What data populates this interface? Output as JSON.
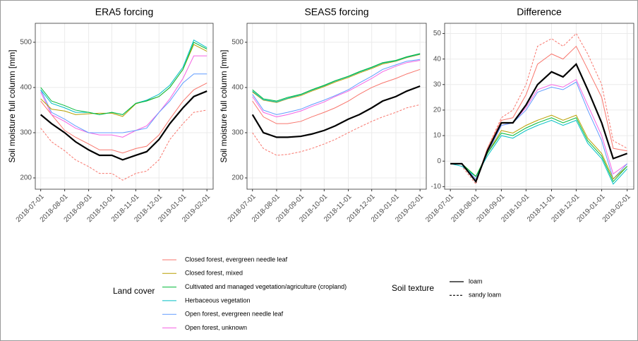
{
  "chart_data": [
    {
      "type": "line",
      "title": "ERA5 forcing",
      "y_label": "Soil moisture full column [mm]",
      "x": [
        "2018-07-01",
        "2018-07-15",
        "2018-08-01",
        "2018-08-15",
        "2018-09-01",
        "2018-09-15",
        "2018-10-01",
        "2018-10-15",
        "2018-11-01",
        "2018-11-15",
        "2018-12-01",
        "2018-12-15",
        "2019-01-01",
        "2019-01-15",
        "2019-02-01"
      ],
      "xlim": [
        "2018-06-24",
        "2019-02-09"
      ],
      "xticks": [
        "2018-07-01",
        "2018-08-01",
        "2018-09-01",
        "2018-10-01",
        "2018-11-01",
        "2018-12-01",
        "2019-01-01",
        "2019-02-01"
      ],
      "ylim": [
        175,
        542
      ],
      "yticks": [
        200,
        300,
        400,
        500
      ],
      "grid": true,
      "series": [
        {
          "color": "#f8766d",
          "dash": "dashed",
          "width": 1,
          "values": [
            310,
            280,
            260,
            240,
            225,
            210,
            210,
            195,
            210,
            215,
            240,
            285,
            320,
            345,
            350
          ]
        },
        {
          "color": "#f8766d",
          "dash": "solid",
          "width": 1,
          "values": [
            370,
            340,
            305,
            290,
            275,
            262,
            262,
            255,
            265,
            270,
            295,
            330,
            370,
            395,
            410
          ]
        },
        {
          "color": "#f564e3",
          "dash": "solid",
          "width": 1,
          "values": [
            390,
            340,
            325,
            310,
            300,
            295,
            295,
            290,
            305,
            315,
            345,
            375,
            420,
            470,
            470
          ]
        },
        {
          "color": "#619cff",
          "dash": "solid",
          "width": 1,
          "values": [
            395,
            345,
            330,
            315,
            300,
            300,
            300,
            300,
            305,
            310,
            345,
            370,
            410,
            430,
            430
          ]
        },
        {
          "color": "#b79f00",
          "dash": "solid",
          "width": 1,
          "values": [
            375,
            352,
            348,
            340,
            342,
            343,
            343,
            336,
            364,
            371,
            380,
            400,
            440,
            495,
            480
          ]
        },
        {
          "color": "#00bfc4",
          "dash": "solid",
          "width": 1,
          "values": [
            395,
            365,
            355,
            345,
            345,
            340,
            345,
            340,
            365,
            372,
            385,
            405,
            445,
            505,
            488
          ]
        },
        {
          "color": "#00ba38",
          "dash": "solid",
          "width": 1,
          "values": [
            400,
            370,
            360,
            350,
            345,
            340,
            345,
            340,
            365,
            370,
            380,
            400,
            440,
            500,
            485
          ]
        },
        {
          "color": "#000000",
          "dash": "solid",
          "width": 2.2,
          "values": [
            340,
            320,
            300,
            280,
            262,
            250,
            250,
            240,
            250,
            258,
            285,
            320,
            355,
            380,
            392
          ]
        }
      ]
    },
    {
      "type": "line",
      "title": "SEAS5 forcing",
      "y_label": "Soil moisture full column [mm]",
      "x": [
        "2018-07-01",
        "2018-07-15",
        "2018-08-01",
        "2018-08-15",
        "2018-09-01",
        "2018-09-15",
        "2018-10-01",
        "2018-10-15",
        "2018-11-01",
        "2018-11-15",
        "2018-12-01",
        "2018-12-15",
        "2019-01-01",
        "2019-01-15",
        "2019-02-01"
      ],
      "xlim": [
        "2018-06-24",
        "2019-02-09"
      ],
      "xticks": [
        "2018-07-01",
        "2018-08-01",
        "2018-09-01",
        "2018-10-01",
        "2018-11-01",
        "2018-12-01",
        "2019-01-01",
        "2019-02-01"
      ],
      "ylim": [
        175,
        542
      ],
      "yticks": [
        200,
        300,
        400,
        500
      ],
      "grid": true,
      "series": [
        {
          "color": "#f8766d",
          "dash": "dashed",
          "width": 1,
          "values": [
            300,
            265,
            250,
            252,
            258,
            265,
            275,
            285,
            300,
            312,
            325,
            335,
            345,
            355,
            362
          ]
        },
        {
          "color": "#f8766d",
          "dash": "solid",
          "width": 1,
          "values": [
            370,
            335,
            320,
            320,
            325,
            335,
            345,
            355,
            370,
            385,
            400,
            410,
            420,
            430,
            440
          ]
        },
        {
          "color": "#f564e3",
          "dash": "solid",
          "width": 1,
          "values": [
            380,
            345,
            335,
            340,
            348,
            358,
            368,
            380,
            392,
            405,
            420,
            435,
            447,
            455,
            460
          ]
        },
        {
          "color": "#619cff",
          "dash": "solid",
          "width": 1,
          "values": [
            385,
            350,
            340,
            345,
            352,
            362,
            372,
            382,
            395,
            410,
            425,
            440,
            450,
            458,
            462
          ]
        },
        {
          "color": "#b79f00",
          "dash": "solid",
          "width": 1,
          "values": [
            390,
            372,
            367,
            375,
            382,
            392,
            402,
            412,
            422,
            432,
            442,
            452,
            458,
            466,
            473
          ]
        },
        {
          "color": "#00bfc4",
          "dash": "solid",
          "width": 1,
          "values": [
            392,
            373,
            368,
            376,
            384,
            394,
            404,
            414,
            424,
            434,
            444,
            454,
            459,
            467,
            474
          ]
        },
        {
          "color": "#00ba38",
          "dash": "solid",
          "width": 1,
          "values": [
            395,
            375,
            370,
            378,
            385,
            395,
            405,
            415,
            425,
            435,
            445,
            455,
            460,
            468,
            475
          ]
        },
        {
          "color": "#000000",
          "dash": "solid",
          "width": 2.2,
          "values": [
            340,
            300,
            290,
            290,
            292,
            297,
            305,
            315,
            330,
            340,
            355,
            370,
            380,
            392,
            403
          ]
        }
      ]
    },
    {
      "type": "line",
      "title": "Difference",
      "x": [
        "2018-07-01",
        "2018-07-15",
        "2018-08-01",
        "2018-08-15",
        "2018-09-01",
        "2018-09-15",
        "2018-10-01",
        "2018-10-15",
        "2018-11-01",
        "2018-11-15",
        "2018-12-01",
        "2018-12-15",
        "2019-01-01",
        "2019-01-15",
        "2019-02-01"
      ],
      "xlim": [
        "2018-06-24",
        "2019-02-09"
      ],
      "xticks": [
        "2018-07-01",
        "2018-08-01",
        "2018-09-01",
        "2018-10-01",
        "2018-11-01",
        "2018-12-01",
        "2019-01-01",
        "2019-02-01"
      ],
      "ylim": [
        -11,
        54
      ],
      "yticks": [
        -10,
        0,
        10,
        20,
        30,
        40,
        50
      ],
      "grid": true,
      "series": [
        {
          "color": "#f8766d",
          "dash": "dashed",
          "width": 1,
          "values": [
            -1,
            -2,
            -9,
            5,
            17,
            20,
            30,
            45,
            48,
            45,
            50,
            42,
            30,
            8,
            5
          ]
        },
        {
          "color": "#f8766d",
          "dash": "solid",
          "width": 1,
          "values": [
            -1,
            -1,
            -8,
            5,
            16,
            17,
            26,
            38,
            42,
            40,
            45,
            36,
            25,
            5,
            4
          ]
        },
        {
          "color": "#f564e3",
          "dash": "solid",
          "width": 1,
          "values": [
            -1,
            -1,
            -7,
            3,
            14,
            15,
            21,
            28,
            30,
            29,
            32,
            22,
            10,
            -5,
            -1
          ]
        },
        {
          "color": "#619cff",
          "dash": "solid",
          "width": 1,
          "values": [
            -1,
            -1,
            -7,
            3,
            14,
            15,
            20,
            27,
            29,
            28,
            31,
            20,
            8,
            -7,
            -1
          ]
        },
        {
          "color": "#b79f00",
          "dash": "solid",
          "width": 1,
          "values": [
            -1,
            -1,
            -6,
            3,
            12,
            11,
            14,
            16,
            18,
            16,
            18,
            9,
            3,
            -7,
            -2
          ]
        },
        {
          "color": "#00bfc4",
          "dash": "solid",
          "width": 1,
          "values": [
            -1,
            -2,
            -6,
            2,
            10,
            9,
            12,
            14,
            16,
            14,
            16,
            7,
            1,
            -9,
            -3
          ]
        },
        {
          "color": "#00ba38",
          "dash": "solid",
          "width": 1,
          "values": [
            -1,
            -1,
            -6,
            3,
            11,
            10,
            13,
            15,
            17,
            15,
            17,
            8,
            2,
            -8,
            -2
          ]
        },
        {
          "color": "#000000",
          "dash": "solid",
          "width": 2.2,
          "values": [
            -1,
            -1,
            -8,
            4,
            15,
            15,
            22,
            30,
            35,
            33,
            38,
            28,
            15,
            1,
            3
          ]
        }
      ]
    }
  ],
  "legend": {
    "land_cover": {
      "title": "Land cover",
      "entries": [
        {
          "name": "Closed forest, evergreen needle leaf",
          "color": "#f8766d"
        },
        {
          "name": "Closed forest, mixed",
          "color": "#b79f00"
        },
        {
          "name": "Cultivated and managed vegetation/agriculture (cropland)",
          "color": "#00ba38"
        },
        {
          "name": "Herbaceous vegetation",
          "color": "#00bfc4"
        },
        {
          "name": "Open forest, evergreen needle leaf",
          "color": "#619cff"
        },
        {
          "name": "Open forest, unknown",
          "color": "#f564e3"
        }
      ]
    },
    "soil_texture": {
      "title": "Soil texture",
      "entries": [
        {
          "name": "loam",
          "dash": "solid"
        },
        {
          "name": "sandy loam",
          "dash": "dashed"
        }
      ]
    }
  }
}
